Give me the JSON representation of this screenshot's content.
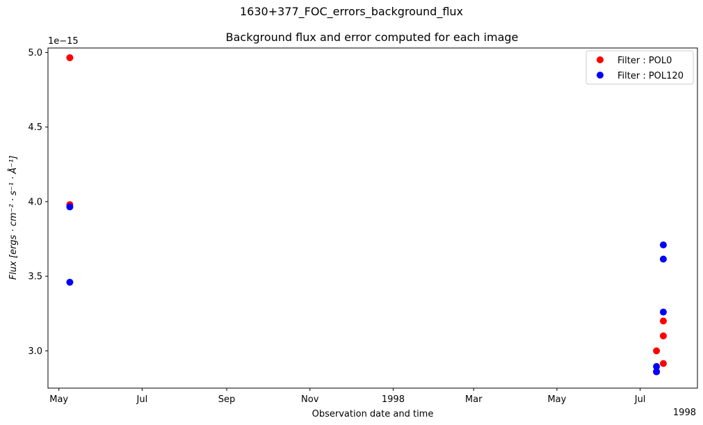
{
  "suptitle": "1630+377_FOC_errors_background_flux",
  "chart_data": {
    "type": "scatter",
    "title": "Background flux and error computed for each image",
    "xlabel": "Observation date and time",
    "ylabel": "Flux [ergs · cm⁻² · s⁻¹ · Å⁻¹]",
    "y_offset_label": "1e−15",
    "x_offset_label": "1998",
    "x_is_date": true,
    "xlim": [
      "1997-04-23",
      "1998-08-12"
    ],
    "ylim": [
      2.75,
      5.03
    ],
    "yticks": [
      3.0,
      3.5,
      4.0,
      4.5,
      5.0
    ],
    "ytick_labels": [
      "3.0",
      "3.5",
      "4.0",
      "4.5",
      "5.0"
    ],
    "xticks": [
      "1997-05-01",
      "1997-07-01",
      "1997-09-01",
      "1997-11-01",
      "1998-01-01",
      "1998-03-01",
      "1998-05-01",
      "1998-07-01"
    ],
    "xtick_labels": [
      "May",
      "Jul",
      "Sep",
      "Nov",
      "1998",
      "Mar",
      "May",
      "Jul"
    ],
    "grid": false,
    "legend_position": "top-right",
    "series": [
      {
        "name": "Filter : POL0",
        "color": "#ff0000",
        "points": [
          {
            "x": "1997-05-09",
            "y": 4.965
          },
          {
            "x": "1997-05-09",
            "y": 3.98
          },
          {
            "x": "1998-07-13",
            "y": 3.0
          },
          {
            "x": "1998-07-13",
            "y": 2.86
          },
          {
            "x": "1998-07-18",
            "y": 3.2
          },
          {
            "x": "1998-07-18",
            "y": 3.1
          },
          {
            "x": "1998-07-18",
            "y": 2.915
          }
        ]
      },
      {
        "name": "Filter : POL120",
        "color": "#0000ff",
        "points": [
          {
            "x": "1997-05-09",
            "y": 3.965
          },
          {
            "x": "1997-05-09",
            "y": 3.46
          },
          {
            "x": "1998-07-13",
            "y": 2.895
          },
          {
            "x": "1998-07-13",
            "y": 2.86
          },
          {
            "x": "1998-07-18",
            "y": 3.71
          },
          {
            "x": "1998-07-18",
            "y": 3.615
          },
          {
            "x": "1998-07-18",
            "y": 3.26
          }
        ]
      }
    ]
  }
}
